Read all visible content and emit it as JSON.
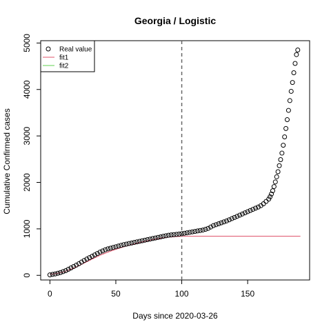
{
  "chart_data": {
    "type": "scatter",
    "title": "Georgia / Logistic",
    "xlabel": "Days since 2020-03-26",
    "ylabel": "Cumulative Confirmed cases",
    "xlim": [
      -7,
      197
    ],
    "ylim": [
      -100,
      5050
    ],
    "xticks": [
      0,
      50,
      100,
      150
    ],
    "yticks": [
      0,
      1000,
      2000,
      3000,
      4000,
      5000
    ],
    "vline": {
      "x": 100,
      "style": "dashed",
      "color": "#666666"
    },
    "legend": {
      "position": "top-left",
      "entries": [
        {
          "label": "Real value",
          "symbol": "open-circle",
          "color": "#000000"
        },
        {
          "label": "fit1",
          "symbol": "line",
          "color": "#DF536B"
        },
        {
          "label": "fit2",
          "symbol": "line",
          "color": "#61D04F"
        }
      ]
    },
    "series": [
      {
        "name": "Real value",
        "kind": "points",
        "color": "#000000",
        "x": [
          0,
          2,
          4,
          6,
          8,
          10,
          12,
          14,
          16,
          18,
          20,
          22,
          24,
          26,
          28,
          30,
          32,
          34,
          36,
          38,
          40,
          42,
          44,
          46,
          48,
          50,
          52,
          54,
          56,
          58,
          60,
          62,
          64,
          66,
          68,
          70,
          72,
          74,
          76,
          78,
          80,
          82,
          84,
          86,
          88,
          90,
          92,
          94,
          96,
          98,
          100,
          102,
          104,
          106,
          108,
          110,
          112,
          114,
          116,
          118,
          120,
          122,
          124,
          126,
          128,
          130,
          132,
          134,
          136,
          138,
          140,
          142,
          144,
          146,
          148,
          150,
          152,
          154,
          156,
          158,
          160,
          162,
          164,
          166,
          167,
          168,
          169,
          170,
          171,
          172,
          173,
          174,
          175,
          176,
          177,
          178,
          179,
          180,
          181,
          182,
          183,
          184,
          185,
          186,
          187,
          188
        ],
        "y": [
          10,
          20,
          30,
          45,
          60,
          80,
          100,
          130,
          160,
          190,
          220,
          250,
          285,
          320,
          350,
          380,
          410,
          440,
          470,
          500,
          525,
          550,
          570,
          585,
          600,
          615,
          630,
          645,
          660,
          672,
          684,
          696,
          708,
          720,
          732,
          744,
          756,
          768,
          780,
          792,
          804,
          816,
          828,
          840,
          852,
          862,
          870,
          876,
          882,
          888,
          896,
          905,
          915,
          925,
          935,
          945,
          955,
          965,
          975,
          990,
          1010,
          1040,
          1070,
          1090,
          1110,
          1130,
          1150,
          1170,
          1195,
          1220,
          1245,
          1270,
          1295,
          1320,
          1345,
          1370,
          1395,
          1420,
          1445,
          1470,
          1500,
          1540,
          1590,
          1640,
          1690,
          1750,
          1820,
          1910,
          2010,
          2120,
          2230,
          2360,
          2490,
          2630,
          2800,
          2980,
          3160,
          3350,
          3550,
          3760,
          3960,
          4150,
          4360,
          4560,
          4750,
          4850
        ]
      },
      {
        "name": "fit1",
        "kind": "line",
        "color": "#DF536B",
        "x": [
          0,
          5,
          10,
          15,
          20,
          25,
          30,
          35,
          40,
          45,
          50,
          55,
          60,
          65,
          70,
          75,
          80,
          85,
          90,
          95,
          100,
          110,
          120,
          130,
          140,
          150,
          160,
          170,
          180,
          190
        ],
        "y": [
          20,
          40,
          70,
          120,
          180,
          250,
          320,
          390,
          455,
          510,
          560,
          605,
          645,
          685,
          720,
          752,
          780,
          803,
          820,
          832,
          838,
          842,
          843,
          843,
          843,
          843,
          843,
          843,
          843,
          843
        ]
      }
    ]
  }
}
